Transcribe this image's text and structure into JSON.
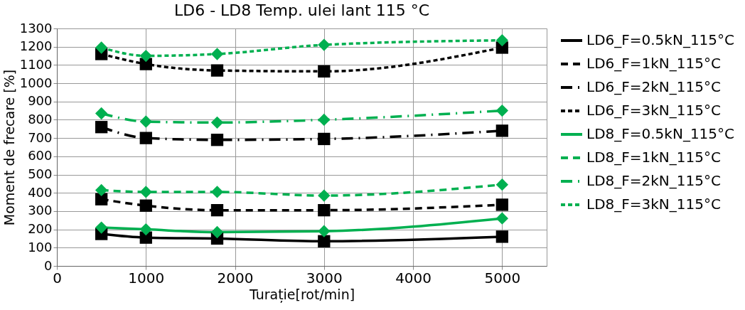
{
  "chart_data": {
    "type": "line",
    "title": "LD6  - LD8 Temp. ulei lant 115 °C",
    "xlabel": "Turație[rot/min]",
    "ylabel": "Moment de frecare [%]",
    "x": [
      500,
      1000,
      1800,
      3000,
      5000
    ],
    "xlim": [
      0,
      5500
    ],
    "xticks": [
      0,
      1000,
      2000,
      3000,
      4000,
      5000
    ],
    "ylim": [
      0,
      1300
    ],
    "yticks": [
      0,
      100,
      200,
      300,
      400,
      500,
      600,
      700,
      800,
      900,
      1000,
      1100,
      1200,
      1300
    ],
    "grid": true,
    "legend": "right",
    "series": [
      {
        "name": "LD6_F=0.5kN_115°C",
        "color": "#000000",
        "line_style": "solid",
        "marker": "square",
        "values": [
          175,
          155,
          150,
          135,
          160
        ]
      },
      {
        "name": "LD6_F=1kN_115°C",
        "color": "#000000",
        "line_style": "dashed",
        "marker": "square",
        "values": [
          365,
          330,
          305,
          305,
          335
        ]
      },
      {
        "name": "LD6_F=2kN_115°C",
        "color": "#000000",
        "line_style": "dashdot",
        "marker": "square",
        "values": [
          760,
          700,
          690,
          695,
          740
        ]
      },
      {
        "name": "LD6_F=3kN_115°C",
        "color": "#000000",
        "line_style": "dotted",
        "marker": "square",
        "values": [
          1160,
          1105,
          1070,
          1065,
          1195
        ]
      },
      {
        "name": "LD8_F=0.5kN_115°C",
        "color": "#00b050",
        "line_style": "solid",
        "marker": "diamond",
        "values": [
          210,
          200,
          185,
          190,
          260
        ]
      },
      {
        "name": "LD8_F=1kN_115°C",
        "color": "#00b050",
        "line_style": "dashed",
        "marker": "diamond",
        "values": [
          415,
          405,
          405,
          385,
          445
        ]
      },
      {
        "name": "LD8_F=2kN_115°C",
        "color": "#00b050",
        "line_style": "dashdot",
        "marker": "diamond",
        "values": [
          835,
          790,
          785,
          800,
          850
        ]
      },
      {
        "name": "LD8_F=3kN_115°C",
        "color": "#00b050",
        "line_style": "dotted",
        "marker": "diamond",
        "values": [
          1195,
          1150,
          1160,
          1210,
          1235
        ]
      }
    ]
  }
}
